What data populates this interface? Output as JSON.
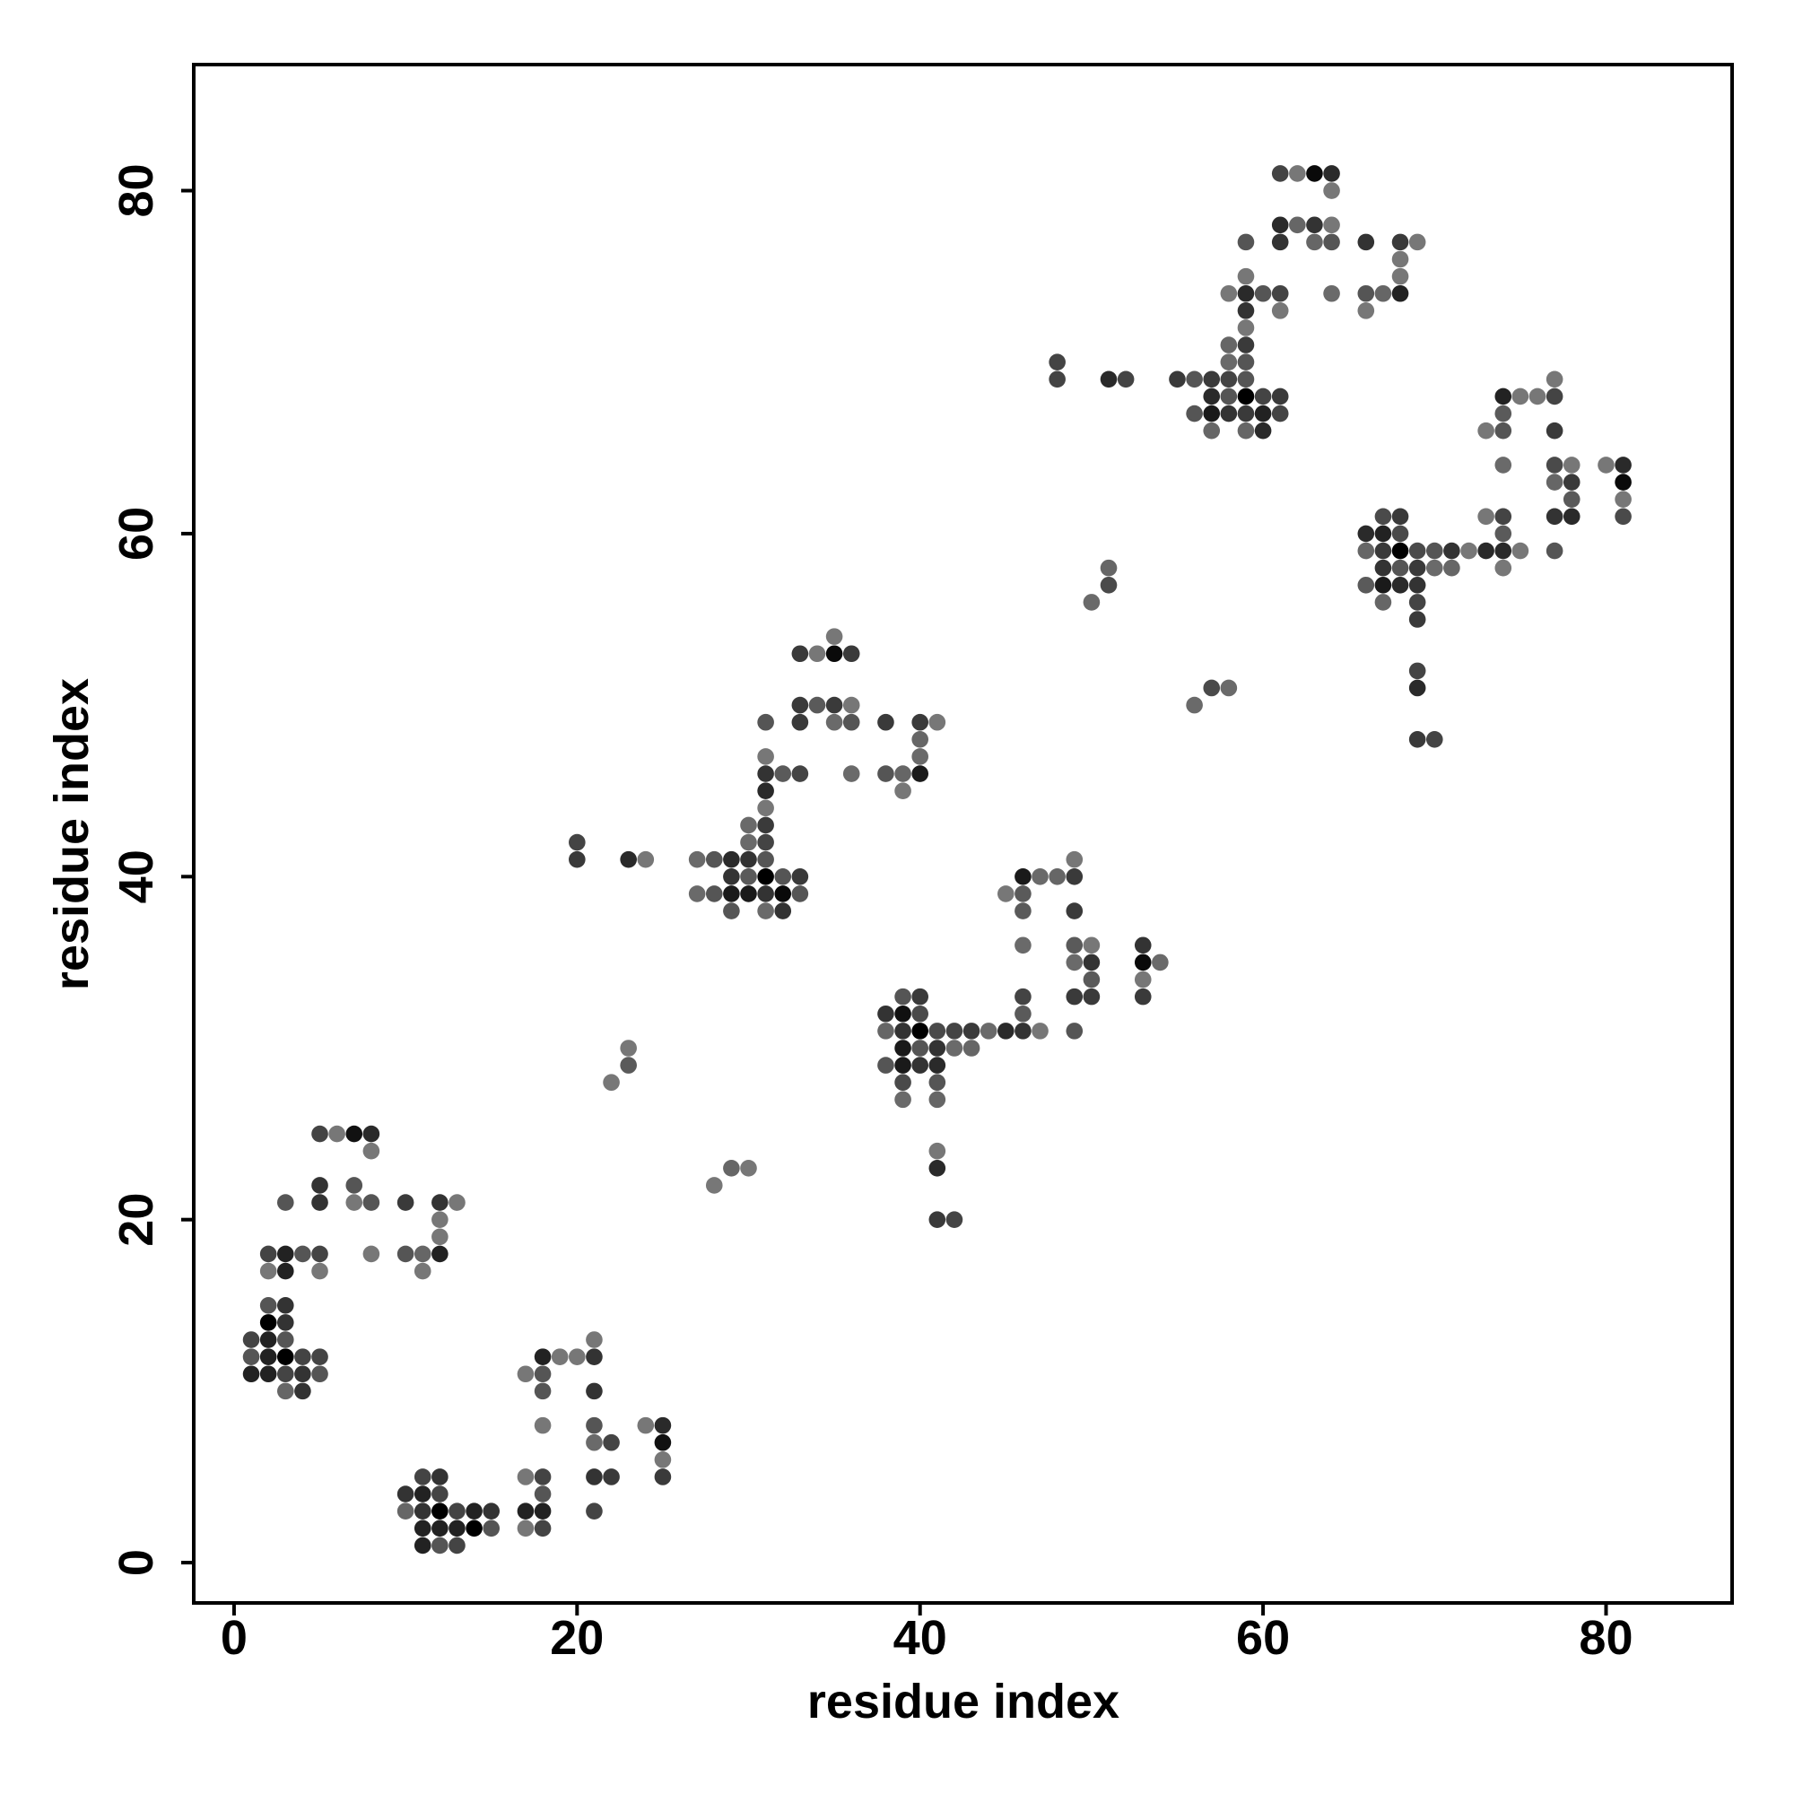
{
  "chart_data": {
    "type": "scatter",
    "title": "",
    "xlabel": "residue index",
    "ylabel": "residue index",
    "xlim": [
      -2.35,
      87.35
    ],
    "ylim": [
      -2.35,
      87.35
    ],
    "xticks": [
      "0",
      "20",
      "40",
      "60",
      "80"
    ],
    "yticks": [
      "0",
      "20",
      "40",
      "60",
      "80"
    ],
    "tick_values": [
      0,
      20,
      40,
      60,
      80
    ],
    "grid": false,
    "legend": "none",
    "point_format": "[x, y, gray shade]",
    "points": [
      [
        5,
        25,
        "#444"
      ],
      [
        6,
        25,
        "#777"
      ],
      [
        7,
        25,
        "#111"
      ],
      [
        8,
        25,
        "#2a2a2a"
      ],
      [
        8,
        24,
        "#777"
      ],
      [
        5,
        22,
        "#333"
      ],
      [
        7,
        22,
        "#555"
      ],
      [
        3,
        21,
        "#555"
      ],
      [
        5,
        21,
        "#333"
      ],
      [
        7,
        21,
        "#777"
      ],
      [
        8,
        21,
        "#555"
      ],
      [
        10,
        21,
        "#3a3a3a"
      ],
      [
        12,
        21,
        "#333"
      ],
      [
        13,
        21,
        "#777"
      ],
      [
        12,
        20,
        "#777"
      ],
      [
        12,
        19,
        "#777"
      ],
      [
        2,
        18,
        "#444"
      ],
      [
        3,
        18,
        "#222"
      ],
      [
        4,
        18,
        "#555"
      ],
      [
        5,
        18,
        "#444"
      ],
      [
        8,
        18,
        "#777"
      ],
      [
        10,
        18,
        "#555"
      ],
      [
        11,
        18,
        "#666"
      ],
      [
        12,
        18,
        "#222"
      ],
      [
        2,
        17,
        "#777"
      ],
      [
        3,
        17,
        "#222"
      ],
      [
        5,
        17,
        "#777"
      ],
      [
        11,
        17,
        "#777"
      ],
      [
        2,
        15,
        "#555"
      ],
      [
        3,
        15,
        "#333"
      ],
      [
        2,
        14,
        "#000"
      ],
      [
        3,
        14,
        "#333"
      ],
      [
        1,
        13,
        "#444"
      ],
      [
        2,
        13,
        "#222"
      ],
      [
        3,
        13,
        "#555"
      ],
      [
        1,
        12,
        "#555"
      ],
      [
        2,
        12,
        "#222"
      ],
      [
        3,
        12,
        "#000"
      ],
      [
        4,
        12,
        "#444"
      ],
      [
        5,
        12,
        "#444"
      ],
      [
        1,
        11,
        "#222"
      ],
      [
        2,
        11,
        "#222"
      ],
      [
        3,
        11,
        "#444"
      ],
      [
        4,
        11,
        "#333"
      ],
      [
        5,
        11,
        "#555"
      ],
      [
        3,
        10,
        "#666"
      ],
      [
        4,
        10,
        "#333"
      ],
      [
        21,
        13,
        "#777"
      ],
      [
        18,
        12,
        "#222"
      ],
      [
        19,
        12,
        "#777"
      ],
      [
        20,
        12,
        "#777"
      ],
      [
        21,
        12,
        "#333"
      ],
      [
        17,
        11,
        "#777"
      ],
      [
        18,
        11,
        "#555"
      ],
      [
        18,
        10,
        "#555"
      ],
      [
        21,
        10,
        "#333"
      ],
      [
        18,
        8,
        "#777"
      ],
      [
        21,
        8,
        "#555"
      ],
      [
        24,
        8,
        "#777"
      ],
      [
        25,
        8,
        "#2a2a2a"
      ],
      [
        21,
        7,
        "#6a6a6a"
      ],
      [
        22,
        7,
        "#444"
      ],
      [
        25,
        7,
        "#111"
      ],
      [
        25,
        6,
        "#777"
      ],
      [
        11,
        5,
        "#444"
      ],
      [
        12,
        5,
        "#333"
      ],
      [
        17,
        5,
        "#777"
      ],
      [
        18,
        5,
        "#444"
      ],
      [
        21,
        5,
        "#333"
      ],
      [
        22,
        5,
        "#3a3a3a"
      ],
      [
        25,
        5,
        "#3a3a3a"
      ],
      [
        10,
        4,
        "#333"
      ],
      [
        11,
        4,
        "#222"
      ],
      [
        12,
        4,
        "#444"
      ],
      [
        18,
        4,
        "#555"
      ],
      [
        10,
        3,
        "#666"
      ],
      [
        11,
        3,
        "#333"
      ],
      [
        12,
        3,
        "#000"
      ],
      [
        13,
        3,
        "#444"
      ],
      [
        14,
        3,
        "#222"
      ],
      [
        15,
        3,
        "#333"
      ],
      [
        17,
        3,
        "#222"
      ],
      [
        18,
        3,
        "#222"
      ],
      [
        21,
        3,
        "#444"
      ],
      [
        11,
        2,
        "#222"
      ],
      [
        12,
        2,
        "#222"
      ],
      [
        13,
        2,
        "#222"
      ],
      [
        14,
        2,
        "#000"
      ],
      [
        15,
        2,
        "#555"
      ],
      [
        17,
        2,
        "#777"
      ],
      [
        18,
        2,
        "#444"
      ],
      [
        11,
        1,
        "#222"
      ],
      [
        12,
        1,
        "#555"
      ],
      [
        13,
        1,
        "#444"
      ],
      [
        28,
        22,
        "#777"
      ],
      [
        29,
        23,
        "#666"
      ],
      [
        30,
        23,
        "#777"
      ],
      [
        22,
        28,
        "#777"
      ],
      [
        23,
        29,
        "#5a5a5a"
      ],
      [
        23,
        30,
        "#777"
      ],
      [
        41,
        24,
        "#777"
      ],
      [
        41,
        23,
        "#2a2a2a"
      ],
      [
        41,
        20,
        "#3a3a3a"
      ],
      [
        42,
        20,
        "#444"
      ],
      [
        35,
        54,
        "#777"
      ],
      [
        33,
        53,
        "#3a3a3a"
      ],
      [
        34,
        53,
        "#777"
      ],
      [
        35,
        53,
        "#0a0a0a"
      ],
      [
        36,
        53,
        "#3a3a3a"
      ],
      [
        33,
        50,
        "#3a3a3a"
      ],
      [
        34,
        50,
        "#5a5a5a"
      ],
      [
        35,
        50,
        "#3a3a3a"
      ],
      [
        36,
        50,
        "#777"
      ],
      [
        31,
        49,
        "#555"
      ],
      [
        33,
        49,
        "#3a3a3a"
      ],
      [
        35,
        49,
        "#6a6a6a"
      ],
      [
        36,
        49,
        "#555"
      ],
      [
        38,
        49,
        "#3a3a3a"
      ],
      [
        40,
        49,
        "#3a3a3a"
      ],
      [
        41,
        49,
        "#777"
      ],
      [
        40,
        48,
        "#666"
      ],
      [
        31,
        47,
        "#777"
      ],
      [
        40,
        47,
        "#6a6a6a"
      ],
      [
        31,
        46,
        "#333"
      ],
      [
        32,
        46,
        "#5a5a5a"
      ],
      [
        33,
        46,
        "#444"
      ],
      [
        36,
        46,
        "#6a6a6a"
      ],
      [
        38,
        46,
        "#555"
      ],
      [
        39,
        46,
        "#666"
      ],
      [
        40,
        46,
        "#1a1a1a"
      ],
      [
        31,
        45,
        "#2a2a2a"
      ],
      [
        39,
        45,
        "#777"
      ],
      [
        31,
        44,
        "#777"
      ],
      [
        30,
        43,
        "#6a6a6a"
      ],
      [
        31,
        43,
        "#3a3a3a"
      ],
      [
        20,
        42,
        "#444"
      ],
      [
        30,
        42,
        "#6a6a6a"
      ],
      [
        31,
        42,
        "#444"
      ],
      [
        20,
        41,
        "#3a3a3a"
      ],
      [
        23,
        41,
        "#2a2a2a"
      ],
      [
        24,
        41,
        "#777"
      ],
      [
        27,
        41,
        "#6a6a6a"
      ],
      [
        28,
        41,
        "#555"
      ],
      [
        29,
        41,
        "#2a2a2a"
      ],
      [
        30,
        41,
        "#333"
      ],
      [
        31,
        41,
        "#555"
      ],
      [
        29,
        40,
        "#333"
      ],
      [
        30,
        40,
        "#5a5a5a"
      ],
      [
        31,
        40,
        "#000"
      ],
      [
        32,
        40,
        "#555"
      ],
      [
        33,
        40,
        "#3a3a3a"
      ],
      [
        27,
        39,
        "#6a6a6a"
      ],
      [
        28,
        39,
        "#555"
      ],
      [
        29,
        39,
        "#1a1a1a"
      ],
      [
        30,
        39,
        "#1a1a1a"
      ],
      [
        31,
        39,
        "#333"
      ],
      [
        32,
        39,
        "#0a0a0a"
      ],
      [
        33,
        39,
        "#555"
      ],
      [
        29,
        38,
        "#555"
      ],
      [
        31,
        38,
        "#6a6a6a"
      ],
      [
        32,
        38,
        "#333"
      ],
      [
        39,
        33,
        "#555"
      ],
      [
        40,
        33,
        "#3a3a3a"
      ],
      [
        38,
        32,
        "#333"
      ],
      [
        39,
        32,
        "#111"
      ],
      [
        40,
        32,
        "#4a4a4a"
      ],
      [
        38,
        31,
        "#666"
      ],
      [
        39,
        31,
        "#333"
      ],
      [
        40,
        31,
        "#000"
      ],
      [
        41,
        31,
        "#4a4a4a"
      ],
      [
        42,
        31,
        "#444"
      ],
      [
        43,
        31,
        "#3a3a3a"
      ],
      [
        44,
        31,
        "#6a6a6a"
      ],
      [
        45,
        31,
        "#2a2a2a"
      ],
      [
        46,
        31,
        "#333"
      ],
      [
        47,
        31,
        "#777"
      ],
      [
        49,
        31,
        "#555"
      ],
      [
        39,
        30,
        "#1a1a1a"
      ],
      [
        40,
        30,
        "#555"
      ],
      [
        41,
        30,
        "#333"
      ],
      [
        42,
        30,
        "#6a6a6a"
      ],
      [
        43,
        30,
        "#666"
      ],
      [
        38,
        29,
        "#555"
      ],
      [
        39,
        29,
        "#1a1a1a"
      ],
      [
        40,
        29,
        "#333"
      ],
      [
        41,
        29,
        "#2a2a2a"
      ],
      [
        39,
        28,
        "#4a4a4a"
      ],
      [
        41,
        28,
        "#555"
      ],
      [
        39,
        27,
        "#6a6a6a"
      ],
      [
        41,
        27,
        "#666"
      ],
      [
        69,
        48,
        "#3a3a3a"
      ],
      [
        70,
        48,
        "#444"
      ],
      [
        49,
        41,
        "#777"
      ],
      [
        46,
        40,
        "#1a1a1a"
      ],
      [
        47,
        40,
        "#6a6a6a"
      ],
      [
        48,
        40,
        "#666"
      ],
      [
        49,
        40,
        "#3a3a3a"
      ],
      [
        45,
        39,
        "#777"
      ],
      [
        46,
        39,
        "#5a5a5a"
      ],
      [
        46,
        38,
        "#5a5a5a"
      ],
      [
        49,
        38,
        "#3a3a3a"
      ],
      [
        46,
        36,
        "#6a6a6a"
      ],
      [
        49,
        36,
        "#5a5a5a"
      ],
      [
        50,
        36,
        "#777"
      ],
      [
        53,
        36,
        "#333"
      ],
      [
        49,
        35,
        "#6a6a6a"
      ],
      [
        50,
        35,
        "#333"
      ],
      [
        53,
        35,
        "#0a0a0a"
      ],
      [
        54,
        35,
        "#6a6a6a"
      ],
      [
        50,
        34,
        "#5a5a5a"
      ],
      [
        53,
        34,
        "#777"
      ],
      [
        46,
        33,
        "#444"
      ],
      [
        49,
        33,
        "#3a3a3a"
      ],
      [
        50,
        33,
        "#3a3a3a"
      ],
      [
        53,
        33,
        "#3a3a3a"
      ],
      [
        46,
        32,
        "#5a5a5a"
      ],
      [
        61,
        81,
        "#444"
      ],
      [
        62,
        81,
        "#777"
      ],
      [
        63,
        81,
        "#0a0a0a"
      ],
      [
        64,
        81,
        "#2a2a2a"
      ],
      [
        64,
        80,
        "#777"
      ],
      [
        61,
        78,
        "#2a2a2a"
      ],
      [
        62,
        78,
        "#666"
      ],
      [
        63,
        78,
        "#333"
      ],
      [
        64,
        78,
        "#777"
      ],
      [
        59,
        77,
        "#555"
      ],
      [
        61,
        77,
        "#333"
      ],
      [
        63,
        77,
        "#666"
      ],
      [
        64,
        77,
        "#555"
      ],
      [
        66,
        77,
        "#333"
      ],
      [
        68,
        77,
        "#3a3a3a"
      ],
      [
        69,
        77,
        "#777"
      ],
      [
        68,
        76,
        "#777"
      ],
      [
        59,
        75,
        "#777"
      ],
      [
        68,
        75,
        "#777"
      ],
      [
        58,
        74,
        "#777"
      ],
      [
        59,
        74,
        "#2a2a2a"
      ],
      [
        60,
        74,
        "#555"
      ],
      [
        61,
        74,
        "#444"
      ],
      [
        64,
        74,
        "#6a6a6a"
      ],
      [
        66,
        74,
        "#555"
      ],
      [
        67,
        74,
        "#666"
      ],
      [
        68,
        74,
        "#222"
      ],
      [
        59,
        73,
        "#333"
      ],
      [
        61,
        73,
        "#777"
      ],
      [
        66,
        73,
        "#777"
      ],
      [
        59,
        72,
        "#777"
      ],
      [
        58,
        71,
        "#666"
      ],
      [
        59,
        71,
        "#3a3a3a"
      ],
      [
        48,
        70,
        "#444"
      ],
      [
        58,
        70,
        "#6a6a6a"
      ],
      [
        59,
        70,
        "#555"
      ],
      [
        48,
        69,
        "#444"
      ],
      [
        51,
        69,
        "#2a2a2a"
      ],
      [
        52,
        69,
        "#444"
      ],
      [
        55,
        69,
        "#3a3a3a"
      ],
      [
        56,
        69,
        "#555"
      ],
      [
        57,
        69,
        "#3a3a3a"
      ],
      [
        58,
        69,
        "#444"
      ],
      [
        59,
        69,
        "#555"
      ],
      [
        57,
        68,
        "#2a2a2a"
      ],
      [
        58,
        68,
        "#555"
      ],
      [
        59,
        68,
        "#000"
      ],
      [
        60,
        68,
        "#444"
      ],
      [
        61,
        68,
        "#3a3a3a"
      ],
      [
        56,
        67,
        "#555"
      ],
      [
        57,
        67,
        "#1a1a1a"
      ],
      [
        58,
        67,
        "#333"
      ],
      [
        59,
        67,
        "#3a3a3a"
      ],
      [
        60,
        67,
        "#222"
      ],
      [
        61,
        67,
        "#444"
      ],
      [
        57,
        66,
        "#666"
      ],
      [
        59,
        66,
        "#666"
      ],
      [
        60,
        66,
        "#2a2a2a"
      ],
      [
        51,
        58,
        "#666"
      ],
      [
        51,
        57,
        "#4a4a4a"
      ],
      [
        50,
        56,
        "#6a6a6a"
      ],
      [
        57,
        51,
        "#4a4a4a"
      ],
      [
        58,
        51,
        "#6a6a6a"
      ],
      [
        56,
        50,
        "#6a6a6a"
      ],
      [
        77,
        69,
        "#777"
      ],
      [
        74,
        68,
        "#222"
      ],
      [
        75,
        68,
        "#777"
      ],
      [
        76,
        68,
        "#777"
      ],
      [
        77,
        68,
        "#444"
      ],
      [
        74,
        67,
        "#5a5a5a"
      ],
      [
        73,
        66,
        "#777"
      ],
      [
        74,
        66,
        "#555"
      ],
      [
        77,
        66,
        "#3a3a3a"
      ],
      [
        74,
        64,
        "#6a6a6a"
      ],
      [
        77,
        64,
        "#4a4a4a"
      ],
      [
        78,
        64,
        "#777"
      ],
      [
        80,
        64,
        "#777"
      ],
      [
        81,
        64,
        "#2a2a2a"
      ],
      [
        77,
        63,
        "#666"
      ],
      [
        78,
        63,
        "#3a3a3a"
      ],
      [
        81,
        63,
        "#0a0a0a"
      ],
      [
        78,
        62,
        "#5a5a5a"
      ],
      [
        81,
        62,
        "#777"
      ],
      [
        67,
        61,
        "#4a4a4a"
      ],
      [
        68,
        61,
        "#3a3a3a"
      ],
      [
        73,
        61,
        "#777"
      ],
      [
        74,
        61,
        "#444"
      ],
      [
        77,
        61,
        "#333"
      ],
      [
        78,
        61,
        "#2a2a2a"
      ],
      [
        81,
        61,
        "#4a4a4a"
      ],
      [
        66,
        60,
        "#2a2a2a"
      ],
      [
        67,
        60,
        "#222"
      ],
      [
        68,
        60,
        "#4a4a4a"
      ],
      [
        74,
        60,
        "#5a5a5a"
      ],
      [
        66,
        59,
        "#666"
      ],
      [
        67,
        59,
        "#3a3a3a"
      ],
      [
        68,
        59,
        "#000"
      ],
      [
        69,
        59,
        "#4a4a4a"
      ],
      [
        70,
        59,
        "#555"
      ],
      [
        71,
        59,
        "#333"
      ],
      [
        72,
        59,
        "#777"
      ],
      [
        73,
        59,
        "#2a2a2a"
      ],
      [
        74,
        59,
        "#2a2a2a"
      ],
      [
        75,
        59,
        "#777"
      ],
      [
        77,
        59,
        "#555"
      ],
      [
        67,
        58,
        "#333"
      ],
      [
        68,
        58,
        "#555"
      ],
      [
        69,
        58,
        "#3a3a3a"
      ],
      [
        70,
        58,
        "#6a6a6a"
      ],
      [
        71,
        58,
        "#666"
      ],
      [
        74,
        58,
        "#777"
      ],
      [
        66,
        57,
        "#5a5a5a"
      ],
      [
        67,
        57,
        "#1a1a1a"
      ],
      [
        68,
        57,
        "#2a2a2a"
      ],
      [
        69,
        57,
        "#333"
      ],
      [
        67,
        56,
        "#666"
      ],
      [
        69,
        56,
        "#444"
      ],
      [
        69,
        55,
        "#3a3a3a"
      ],
      [
        69,
        52,
        "#444"
      ],
      [
        69,
        51,
        "#2a2a2a"
      ]
    ]
  }
}
